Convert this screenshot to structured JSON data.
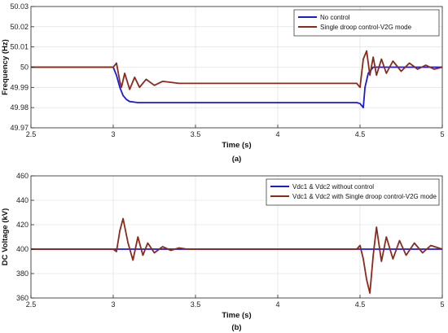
{
  "chart_data": [
    {
      "type": "line",
      "panel_label": "(a)",
      "xlabel": "Time (s)",
      "ylabel": "Frequency (Hz)",
      "xlim": [
        2.5,
        5
      ],
      "ylim": [
        49.97,
        50.03
      ],
      "xticks": [
        2.5,
        3,
        3.5,
        4,
        4.5,
        5
      ],
      "yticks": [
        49.97,
        49.98,
        49.99,
        50,
        50.01,
        50.02,
        50.03
      ],
      "xtick_labels": [
        "2.5",
        "3",
        "3.5",
        "4",
        "4.5",
        "5"
      ],
      "ytick_labels": [
        "49.97",
        "49.98",
        "49.99",
        "50",
        "50.01",
        "50.02",
        "50.03"
      ],
      "grid": true,
      "legend_position": "top-right",
      "series": [
        {
          "name": "No control",
          "color": "#1a1adb",
          "x": [
            2.5,
            3.0,
            3.02,
            3.04,
            3.06,
            3.08,
            3.1,
            3.15,
            3.3,
            3.5,
            3.8,
            4.0,
            4.3,
            4.48,
            4.5,
            4.52,
            4.53,
            4.55,
            4.58,
            4.62,
            4.7,
            4.8,
            5.0
          ],
          "y": [
            50.0,
            50.0,
            49.996,
            49.99,
            49.986,
            49.984,
            49.983,
            49.9825,
            49.9825,
            49.9825,
            49.9825,
            49.9825,
            49.9825,
            49.9825,
            49.982,
            49.98,
            49.99,
            49.997,
            50.0,
            50.0,
            50.0,
            50.0,
            50.0
          ]
        },
        {
          "name": "Single droop control-V2G mode",
          "color": "#8b2a1a",
          "x": [
            2.5,
            3.0,
            3.02,
            3.04,
            3.05,
            3.07,
            3.1,
            3.13,
            3.16,
            3.2,
            3.25,
            3.3,
            3.4,
            3.5,
            3.7,
            4.0,
            4.3,
            4.48,
            4.5,
            4.52,
            4.54,
            4.56,
            4.58,
            4.6,
            4.63,
            4.66,
            4.7,
            4.75,
            4.8,
            4.85,
            4.9,
            4.95,
            5.0
          ],
          "y": [
            50.0,
            50.0,
            50.002,
            49.993,
            49.99,
            49.997,
            49.989,
            49.995,
            49.99,
            49.994,
            49.991,
            49.993,
            49.992,
            49.992,
            49.992,
            49.992,
            49.992,
            49.992,
            49.99,
            50.004,
            50.008,
            49.996,
            50.005,
            49.996,
            50.004,
            49.997,
            50.003,
            49.998,
            50.002,
            49.999,
            50.001,
            49.999,
            50.0
          ]
        }
      ]
    },
    {
      "type": "line",
      "panel_label": "(b)",
      "xlabel": "Time (s)",
      "ylabel": "DC Voltage (kV)",
      "xlim": [
        2.5,
        5
      ],
      "ylim": [
        360,
        460
      ],
      "xticks": [
        2.5,
        3,
        3.5,
        4,
        4.5,
        5
      ],
      "yticks": [
        360,
        380,
        400,
        420,
        440,
        460
      ],
      "xtick_labels": [
        "2.5",
        "3",
        "3.5",
        "4",
        "4.5",
        "5"
      ],
      "ytick_labels": [
        "360",
        "380",
        "400",
        "420",
        "440",
        "460"
      ],
      "grid": true,
      "legend_position": "top-right",
      "series": [
        {
          "name": "Vdc1 & Vdc2 without control",
          "color": "#1a1adb",
          "x": [
            2.5,
            3.0,
            4.5,
            5.0
          ],
          "y": [
            400,
            400,
            400,
            400
          ]
        },
        {
          "name": "Vdc1 & Vdc2 with Single droop control-V2G mode",
          "color": "#8b2a1a",
          "x": [
            2.5,
            3.0,
            3.02,
            3.04,
            3.06,
            3.09,
            3.12,
            3.15,
            3.18,
            3.21,
            3.25,
            3.3,
            3.35,
            3.4,
            3.45,
            3.5,
            3.6,
            4.0,
            4.48,
            4.5,
            4.52,
            4.54,
            4.56,
            4.58,
            4.6,
            4.63,
            4.66,
            4.7,
            4.74,
            4.78,
            4.83,
            4.88,
            4.93,
            5.0
          ],
          "y": [
            400,
            400,
            398,
            415,
            425,
            405,
            391,
            410,
            395,
            405,
            397,
            402,
            399,
            401,
            400,
            400,
            400,
            400,
            400,
            403,
            392,
            375,
            364,
            395,
            418,
            390,
            410,
            392,
            407,
            395,
            405,
            397,
            403,
            400
          ]
        }
      ]
    }
  ]
}
